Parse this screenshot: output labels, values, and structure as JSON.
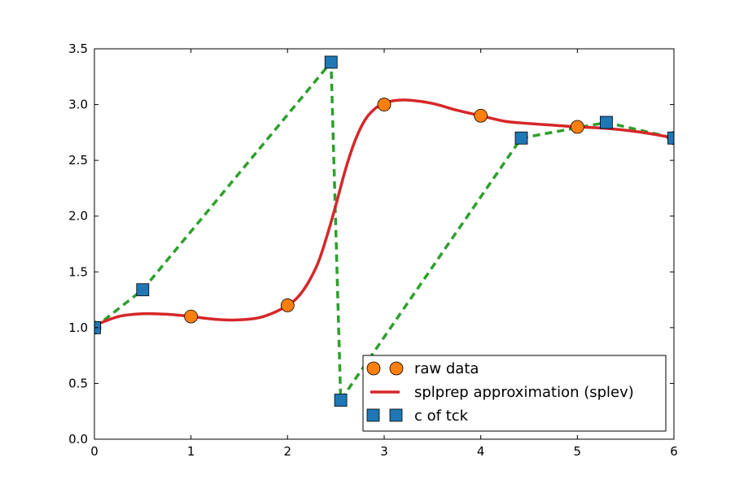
{
  "chart_data": {
    "type": "line",
    "title": "",
    "xlabel": "",
    "ylabel": "",
    "xlim": [
      0,
      6
    ],
    "ylim": [
      0.0,
      3.5
    ],
    "grid": false,
    "xticks": [
      "0",
      "1",
      "2",
      "3",
      "4",
      "5",
      "6"
    ],
    "yticks": [
      "0.0",
      "0.5",
      "1.0",
      "1.5",
      "2.0",
      "2.5",
      "3.0",
      "3.5"
    ],
    "xtick_values": [
      0,
      1,
      2,
      3,
      4,
      5,
      6
    ],
    "ytick_values": [
      0.0,
      0.5,
      1.0,
      1.5,
      2.0,
      2.5,
      3.0,
      3.5
    ],
    "legend_position": "lower-right",
    "series": [
      {
        "name": "raw data",
        "kind": "markers-circle",
        "color": "#ff7f0e",
        "x": [
          0,
          1,
          2,
          3,
          4,
          5,
          6
        ],
        "y": [
          1.0,
          1.1,
          1.2,
          3.0,
          2.9,
          2.8,
          2.7
        ]
      },
      {
        "name": "splprep approximation (splev)",
        "kind": "line-solid",
        "color": "#d62728",
        "x": [
          0,
          0.25,
          0.5,
          0.75,
          1.0,
          1.25,
          1.5,
          1.75,
          2.0,
          2.15,
          2.3,
          2.4,
          2.5,
          2.6,
          2.7,
          2.8,
          2.9,
          3.0,
          3.1,
          3.25,
          3.5,
          3.75,
          4.0,
          4.25,
          4.5,
          4.75,
          5.0,
          5.25,
          5.5,
          5.75,
          6.0
        ],
        "y": [
          1.02,
          1.1,
          1.125,
          1.12,
          1.1,
          1.075,
          1.07,
          1.1,
          1.2,
          1.32,
          1.55,
          1.8,
          2.1,
          2.42,
          2.68,
          2.86,
          2.96,
          3.01,
          3.035,
          3.04,
          3.01,
          2.95,
          2.9,
          2.85,
          2.83,
          2.815,
          2.8,
          2.79,
          2.77,
          2.74,
          2.7
        ]
      },
      {
        "name": "c of tck",
        "kind": "markers-square-dashed",
        "color": "#1f77b4",
        "line_color": "#2ca02c",
        "x": [
          0.0,
          0.5,
          2.45,
          2.55,
          4.42,
          5.3,
          6.0
        ],
        "y": [
          1.0,
          1.34,
          3.38,
          0.35,
          2.7,
          2.84,
          2.7
        ]
      }
    ],
    "legend": [
      "raw data",
      "splprep approximation (splev)",
      "c of tck"
    ]
  }
}
